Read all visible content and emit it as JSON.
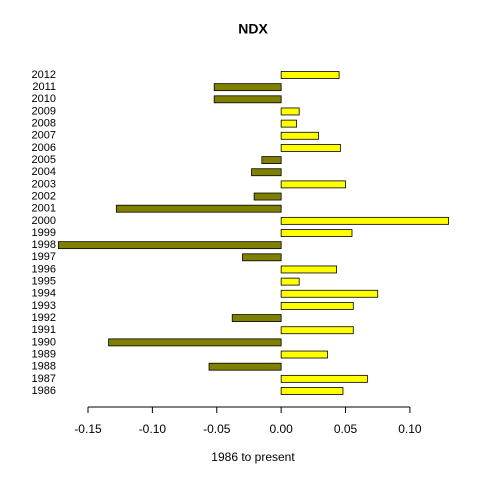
{
  "chart_data": {
    "type": "barh",
    "title": "NDX",
    "xlabel": "1986 to present",
    "categories": [
      "1986",
      "1987",
      "1988",
      "1989",
      "1990",
      "1991",
      "1992",
      "1993",
      "1994",
      "1995",
      "1996",
      "1997",
      "1998",
      "1999",
      "2000",
      "2001",
      "2002",
      "2003",
      "2004",
      "2005",
      "2006",
      "2007",
      "2008",
      "2009",
      "2010",
      "2011",
      "2012"
    ],
    "values": [
      0.048,
      0.067,
      -0.056,
      0.036,
      -0.134,
      0.056,
      -0.038,
      0.056,
      0.075,
      0.014,
      0.043,
      -0.03,
      -0.173,
      0.055,
      0.13,
      -0.128,
      -0.021,
      0.05,
      -0.023,
      -0.015,
      0.046,
      0.029,
      0.012,
      0.014,
      -0.052,
      -0.052,
      0.045
    ],
    "positive_color": "#ffff00",
    "negative_color": "#808000",
    "xlim": [
      -0.175,
      0.135
    ],
    "xticks": [
      -0.15,
      {
        "value": -0.1,
        "label": "-0.10"
      },
      -0.05,
      {
        "value": 0,
        "label": "0.00"
      },
      0.05,
      {
        "value": 0.1,
        "label": "0.10"
      }
    ]
  }
}
